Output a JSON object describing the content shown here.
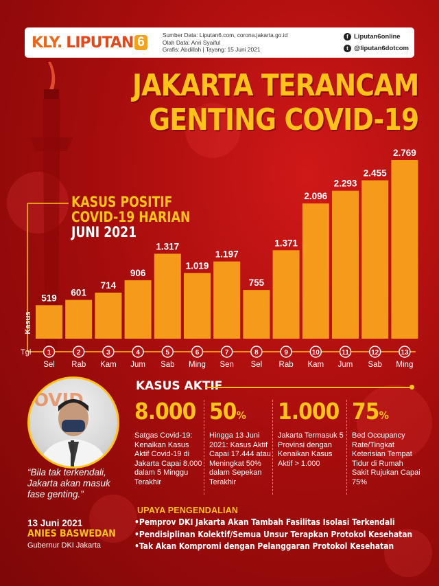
{
  "header": {
    "logo_kly": "KLY.",
    "logo_text": "LIPUTAN",
    "logo_num": "6",
    "source": "Sumber Data: Liputan6.com, corona.jakarta.go.id",
    "data_by": "Olah Data: Anri Syaiful",
    "graphic_by": "Grafis: Abdillah | Tayang: 15 Juni 2021",
    "facebook": "Liputan6online",
    "twitter": "@liputan6dotcom",
    "facebook_icon": "facebook-icon",
    "twitter_icon": "twitter-icon"
  },
  "title_line1": "JAKARTA TERANCAM",
  "title_line2": "GENTING COVID-19",
  "subtitle_line1": "KASUS POSITIF",
  "subtitle_line2": "COVID-19 HARIAN",
  "subtitle_line3": "JUNI 2021",
  "colors": {
    "accent": "#ffc21a",
    "bar": "#f59a1b",
    "background": "#a80d0d"
  },
  "chart_data": {
    "type": "bar",
    "ylabel": "Kasus",
    "xlabel": "Tgl",
    "categories": [
      "1",
      "2",
      "3",
      "4",
      "5",
      "6",
      "7",
      "8",
      "9",
      "10",
      "11",
      "12",
      "13"
    ],
    "days": [
      "Sel",
      "Rab",
      "Kam",
      "Jum",
      "Sab",
      "Ming",
      "Sen",
      "Sel",
      "Rab",
      "Kam",
      "Jum",
      "Sab",
      "Ming"
    ],
    "values": [
      519,
      601,
      714,
      906,
      1317,
      1019,
      1197,
      755,
      1371,
      2096,
      2293,
      2455,
      2769
    ],
    "value_labels": [
      "519",
      "601",
      "714",
      "906",
      "1.317",
      "1.019",
      "1.197",
      "755",
      "1.371",
      "2.096",
      "2.293",
      "2.455",
      "2.769"
    ],
    "ylim": [
      0,
      2769
    ]
  },
  "active": {
    "title": "KASUS AKTIF",
    "stats": [
      {
        "value": "8.000",
        "suffix": "",
        "text": "Satgas Covid-19: Kenaikan Kasus Aktif Covid-19 di Jakarta Capai 8.000 dalam 5 Minggu Terakhir"
      },
      {
        "value": "50",
        "suffix": "%",
        "text": "Hingga 13 Juni 2021: Kasus Aktif Capai 17.444 atau Meningkat 50% dalam Sepekan Terakhir"
      },
      {
        "value": "1.000",
        "suffix": "",
        "text": "Jakarta Termasuk 5 Provinsi dengan Kenaikan Kasus Aktif > 1.000"
      },
      {
        "value": "75",
        "suffix": "%",
        "text": "Bed Occupancy Rate/Tingkat Keterisian Tempat Tidur di Rumah Sakit Rujukan Capai 75%"
      }
    ]
  },
  "quote": {
    "text": "“Bila tak terkendali, Jakarta akan masuk fase genting.”",
    "date": "13 Juni 2021",
    "name": "ANIES BASWEDAN",
    "role": "Gubernur DKI Jakarta"
  },
  "upaya": {
    "title": "UPAYA PENGENDALIAN",
    "items": [
      "Pemprov DKI Jakarta Akan Tambah Fasilitas Isolasi Terkendali",
      "Pendisiplinan Kolektif/Semua Unsur Terapkan Protokol Kesehatan",
      "Tak Akan Kompromi dengan Pelanggaran Protokol Kesehatan"
    ]
  }
}
